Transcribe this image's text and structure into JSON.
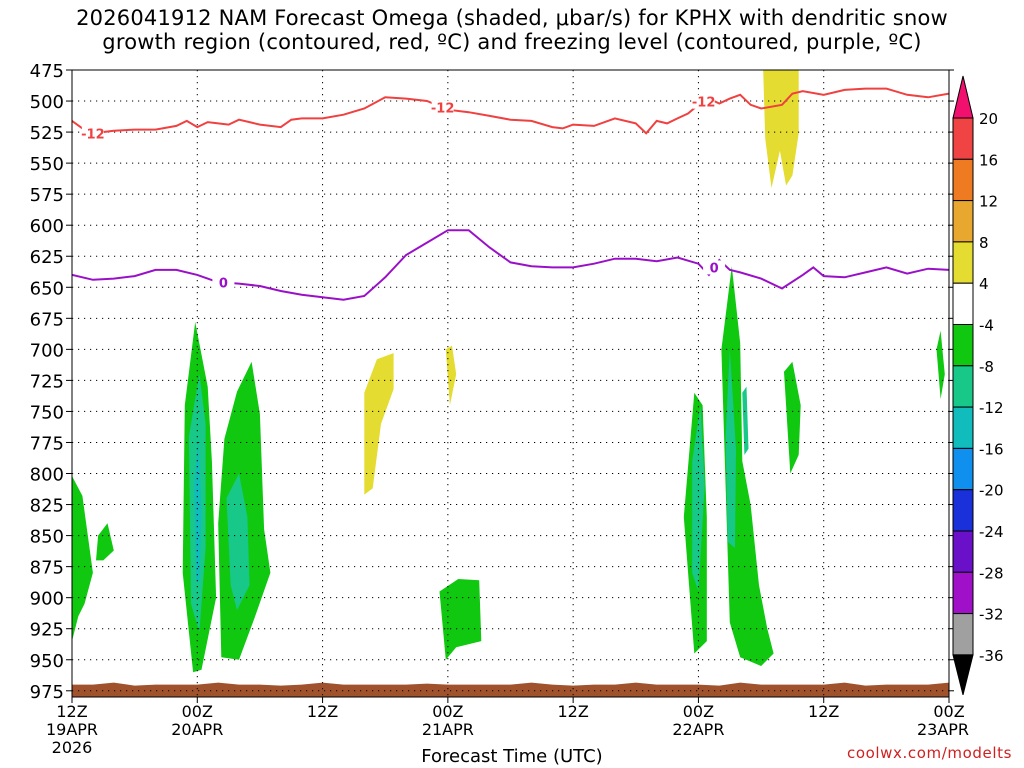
{
  "title_line1": "2026041912 NAM Forecast Omega (shaded, μbar/s) for KPHX with dendritic snow",
  "title_line2": "growth region (contoured, red, ºC) and freezing level (contoured, purple, ºC)",
  "credit": "coolwx.com/modelts",
  "chart_data": {
    "type": "time-height",
    "title": "2026041912 NAM Forecast Omega (shaded, μbar/s) for KPHX with dendritic snow growth region (contoured, red, ºC) and freezing level (contoured, purple, ºC)",
    "xlabel": "Forecast Time (UTC)",
    "x_ticks": [
      {
        "hour": 0,
        "label": "12Z",
        "date": "19APR",
        "year": "2026"
      },
      {
        "hour": 12,
        "label": "00Z",
        "date": "20APR"
      },
      {
        "hour": 24,
        "label": "12Z"
      },
      {
        "hour": 36,
        "label": "00Z",
        "date": "21APR"
      },
      {
        "hour": 48,
        "label": "12Z"
      },
      {
        "hour": 60,
        "label": "00Z",
        "date": "22APR"
      },
      {
        "hour": 72,
        "label": "12Z"
      },
      {
        "hour": 84,
        "label": "00Z",
        "date": "23APR"
      }
    ],
    "xlim": [
      0,
      84
    ],
    "ylim": [
      475,
      980
    ],
    "y_ticks": [
      475,
      500,
      525,
      550,
      575,
      600,
      625,
      650,
      675,
      700,
      725,
      750,
      775,
      800,
      825,
      850,
      875,
      900,
      925,
      950,
      975
    ],
    "grid": true,
    "colorbar": {
      "labels": [
        "20",
        "16",
        "12",
        "8",
        "4",
        "-4",
        "-8",
        "-12",
        "-16",
        "-20",
        "-24",
        "-28",
        "-32",
        "-36"
      ],
      "colors": [
        "#f2106e",
        "#f04444",
        "#ee7a22",
        "#e8a830",
        "#e4dc30",
        "#ffffff",
        "#10c810",
        "#18c888",
        "#10bcbc",
        "#1090ee",
        "#1a30d8",
        "#6a10c8",
        "#a010c8",
        "#a0a0a0",
        "#000000"
      ]
    },
    "contours": [
      {
        "name": "dendritic -12C",
        "color": "#f04040",
        "label": "-12",
        "x": [
          0,
          1,
          2,
          4,
          6,
          8,
          10,
          11,
          12,
          13,
          14,
          15,
          16,
          18,
          20,
          21,
          22,
          24,
          26,
          28,
          30,
          32,
          34,
          36,
          38,
          40,
          42,
          44,
          46,
          47,
          48,
          50,
          52,
          54,
          55,
          56,
          57,
          58,
          59,
          60,
          61,
          62,
          63,
          64,
          65,
          66,
          68,
          69,
          70,
          72,
          74,
          76,
          78,
          80,
          82,
          84
        ],
        "p": [
          516,
          522,
          526,
          524,
          523,
          523,
          520,
          516,
          521,
          517,
          518,
          519,
          515,
          519,
          521,
          515,
          514,
          514,
          511,
          506,
          497,
          498,
          500,
          507,
          509,
          512,
          515,
          516,
          521,
          522,
          519,
          520,
          514,
          518,
          526,
          516,
          518,
          514,
          510,
          503,
          498,
          502,
          498,
          495,
          503,
          506,
          503,
          494,
          492,
          495,
          491,
          490,
          490,
          495,
          497,
          494
        ]
      },
      {
        "name": "freezing level 0C",
        "color": "#9a10c8",
        "label": "0",
        "x": [
          0,
          2,
          4,
          6,
          8,
          10,
          12,
          14,
          16,
          18,
          20,
          22,
          24,
          26,
          28,
          30,
          32,
          34,
          36,
          38,
          40,
          42,
          44,
          46,
          48,
          50,
          52,
          54,
          56,
          58,
          60,
          61,
          62,
          63,
          64,
          66,
          68,
          70,
          71,
          72,
          74,
          76,
          78,
          80,
          82,
          84
        ],
        "p": [
          640,
          644,
          643,
          641,
          636,
          636,
          640,
          646,
          647,
          649,
          653,
          656,
          658,
          660,
          657,
          642,
          624,
          614,
          604,
          604,
          618,
          630,
          633,
          634,
          634,
          631,
          627,
          627,
          629,
          626,
          631,
          640,
          628,
          636,
          638,
          643,
          651,
          640,
          634,
          641,
          642,
          638,
          634,
          639,
          635,
          636
        ]
      }
    ],
    "omega_regions": [
      {
        "level": "-4 to -8",
        "color": "#10c810",
        "polys": [
          [
            [
              0,
              802
            ],
            [
              1,
              818
            ],
            [
              2,
              880
            ],
            [
              1.2,
              905
            ],
            [
              0.6,
              915
            ],
            [
              0,
              935
            ]
          ],
          [
            [
              2.5,
              850
            ],
            [
              3.4,
              840
            ],
            [
              4,
              862
            ],
            [
              3,
              870
            ],
            [
              2.3,
              870
            ]
          ],
          [
            [
              10.8,
              745
            ],
            [
              11.8,
              678
            ],
            [
              13,
              730
            ],
            [
              13.4,
              790
            ],
            [
              13.8,
              900
            ],
            [
              12.4,
              958
            ],
            [
              11.6,
              960
            ],
            [
              10.6,
              880
            ]
          ],
          [
            [
              14,
              840
            ],
            [
              14.6,
              772
            ],
            [
              15.8,
              734
            ],
            [
              17.2,
              710
            ],
            [
              18,
              752
            ],
            [
              18.4,
              845
            ],
            [
              19,
              880
            ],
            [
              17.5,
              916
            ],
            [
              16,
              950
            ],
            [
              14.3,
              948
            ]
          ],
          [
            [
              35.2,
              895
            ],
            [
              37,
              885
            ],
            [
              39,
              886
            ],
            [
              39.2,
              935
            ],
            [
              36.8,
              940
            ],
            [
              35.8,
              950
            ]
          ],
          [
            [
              58.6,
              835
            ],
            [
              59.6,
              735
            ],
            [
              60.4,
              745
            ],
            [
              60.8,
              835
            ],
            [
              60.8,
              935
            ],
            [
              59.6,
              945
            ]
          ],
          [
            [
              62.2,
              700
            ],
            [
              63.2,
              633
            ],
            [
              64,
              695
            ],
            [
              64.2,
              790
            ],
            [
              65,
              825
            ],
            [
              65.8,
              890
            ],
            [
              66.6,
              925
            ],
            [
              67.2,
              945
            ],
            [
              66,
              955
            ],
            [
              64,
              948
            ],
            [
              63,
              920
            ]
          ],
          [
            [
              68.2,
              718
            ],
            [
              69,
              710
            ],
            [
              69.8,
              745
            ],
            [
              69.6,
              785
            ],
            [
              68.8,
              800
            ]
          ],
          [
            [
              82.8,
              700
            ],
            [
              83.2,
              685
            ],
            [
              83.6,
              720
            ],
            [
              83.2,
              740
            ]
          ]
        ]
      },
      {
        "level": "-8 to -12",
        "color": "#18c888",
        "polys": [
          [
            [
              11.2,
              770
            ],
            [
              12.2,
              720
            ],
            [
              12.8,
              760
            ],
            [
              12.8,
              860
            ],
            [
              12.2,
              928
            ],
            [
              11.4,
              905
            ]
          ],
          [
            [
              14.8,
              820
            ],
            [
              16,
              800
            ],
            [
              16.8,
              835
            ],
            [
              17,
              890
            ],
            [
              15.8,
              910
            ],
            [
              15.2,
              890
            ]
          ],
          [
            [
              59.4,
              790
            ],
            [
              60.2,
              745
            ],
            [
              60.6,
              810
            ],
            [
              60,
              895
            ],
            [
              59.4,
              880
            ]
          ],
          [
            [
              62.6,
              770
            ],
            [
              63,
              700
            ],
            [
              63.6,
              780
            ],
            [
              63.5,
              860
            ],
            [
              62.8,
              855
            ]
          ],
          [
            [
              64.2,
              735
            ],
            [
              64.6,
              730
            ],
            [
              64.8,
              780
            ],
            [
              64.4,
              785
            ]
          ]
        ]
      },
      {
        "level": "-12 to -16",
        "color": "#10bcbc",
        "polys": [
          [
            [
              11.7,
              810
            ],
            [
              12.1,
              770
            ],
            [
              12.4,
              830
            ],
            [
              12.2,
              888
            ],
            [
              11.9,
              885
            ]
          ]
        ]
      },
      {
        "level": "4 to 8",
        "color": "#e4dc30",
        "polys": [
          [
            [
              28,
              735
            ],
            [
              29.2,
              708
            ],
            [
              30.8,
              703
            ],
            [
              30.8,
              732
            ],
            [
              29.6,
              760
            ],
            [
              28.8,
              812
            ],
            [
              28,
              817
            ]
          ],
          [
            [
              35.8,
              700
            ],
            [
              36.4,
              697
            ],
            [
              36.8,
              720
            ],
            [
              36.2,
              745
            ]
          ],
          [
            [
              66.2,
              475
            ],
            [
              69.6,
              475
            ],
            [
              69.6,
              526
            ],
            [
              69,
              560
            ],
            [
              68.4,
              568
            ],
            [
              67.8,
              540
            ],
            [
              67,
              570
            ],
            [
              66.4,
              530
            ]
          ]
        ]
      }
    ],
    "surface": {
      "color": "#a0522d",
      "from": 970,
      "to": 980
    }
  }
}
